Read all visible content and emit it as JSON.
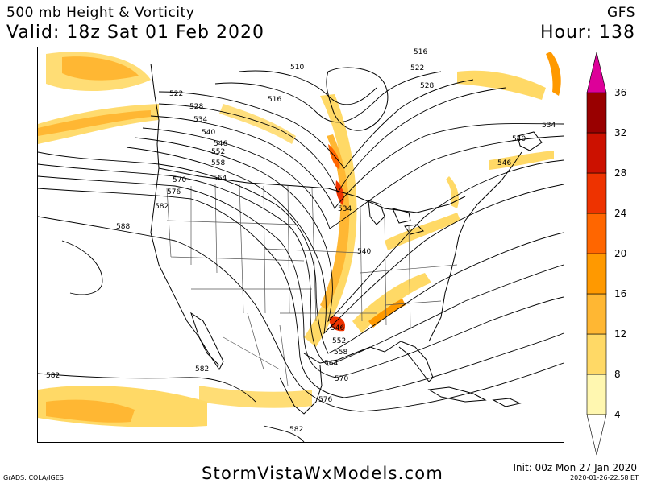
{
  "header": {
    "title": "500 mb Height & Vorticity",
    "model": "GFS",
    "valid": "Valid: 18z Sat 01 Feb 2020",
    "hour": "Hour: 138"
  },
  "footer": {
    "site": "StormVistaWxModels.com",
    "credit": "GrADS: COLA/IGES",
    "init": "Init: 00z Mon 27 Jan 2020",
    "stamp": "2020-01-26-22:58 ET"
  },
  "map": {
    "height_contour_labels": [
      "510",
      "516",
      "522",
      "528",
      "534",
      "540",
      "546",
      "552",
      "558",
      "564",
      "570",
      "576",
      "582",
      "588"
    ],
    "contour_color": "#000000",
    "boundary_color": "#000000",
    "state_boundary_color": "#555555"
  },
  "colorbar": {
    "units": "vorticity",
    "ticks": [
      "4",
      "8",
      "12",
      "16",
      "20",
      "24",
      "28",
      "32",
      "36"
    ],
    "colors": [
      "#fff7b0",
      "#ffd966",
      "#ffb733",
      "#ff9900",
      "#ff6600",
      "#ee3300",
      "#cc1100",
      "#990000",
      "#dd0099"
    ]
  }
}
